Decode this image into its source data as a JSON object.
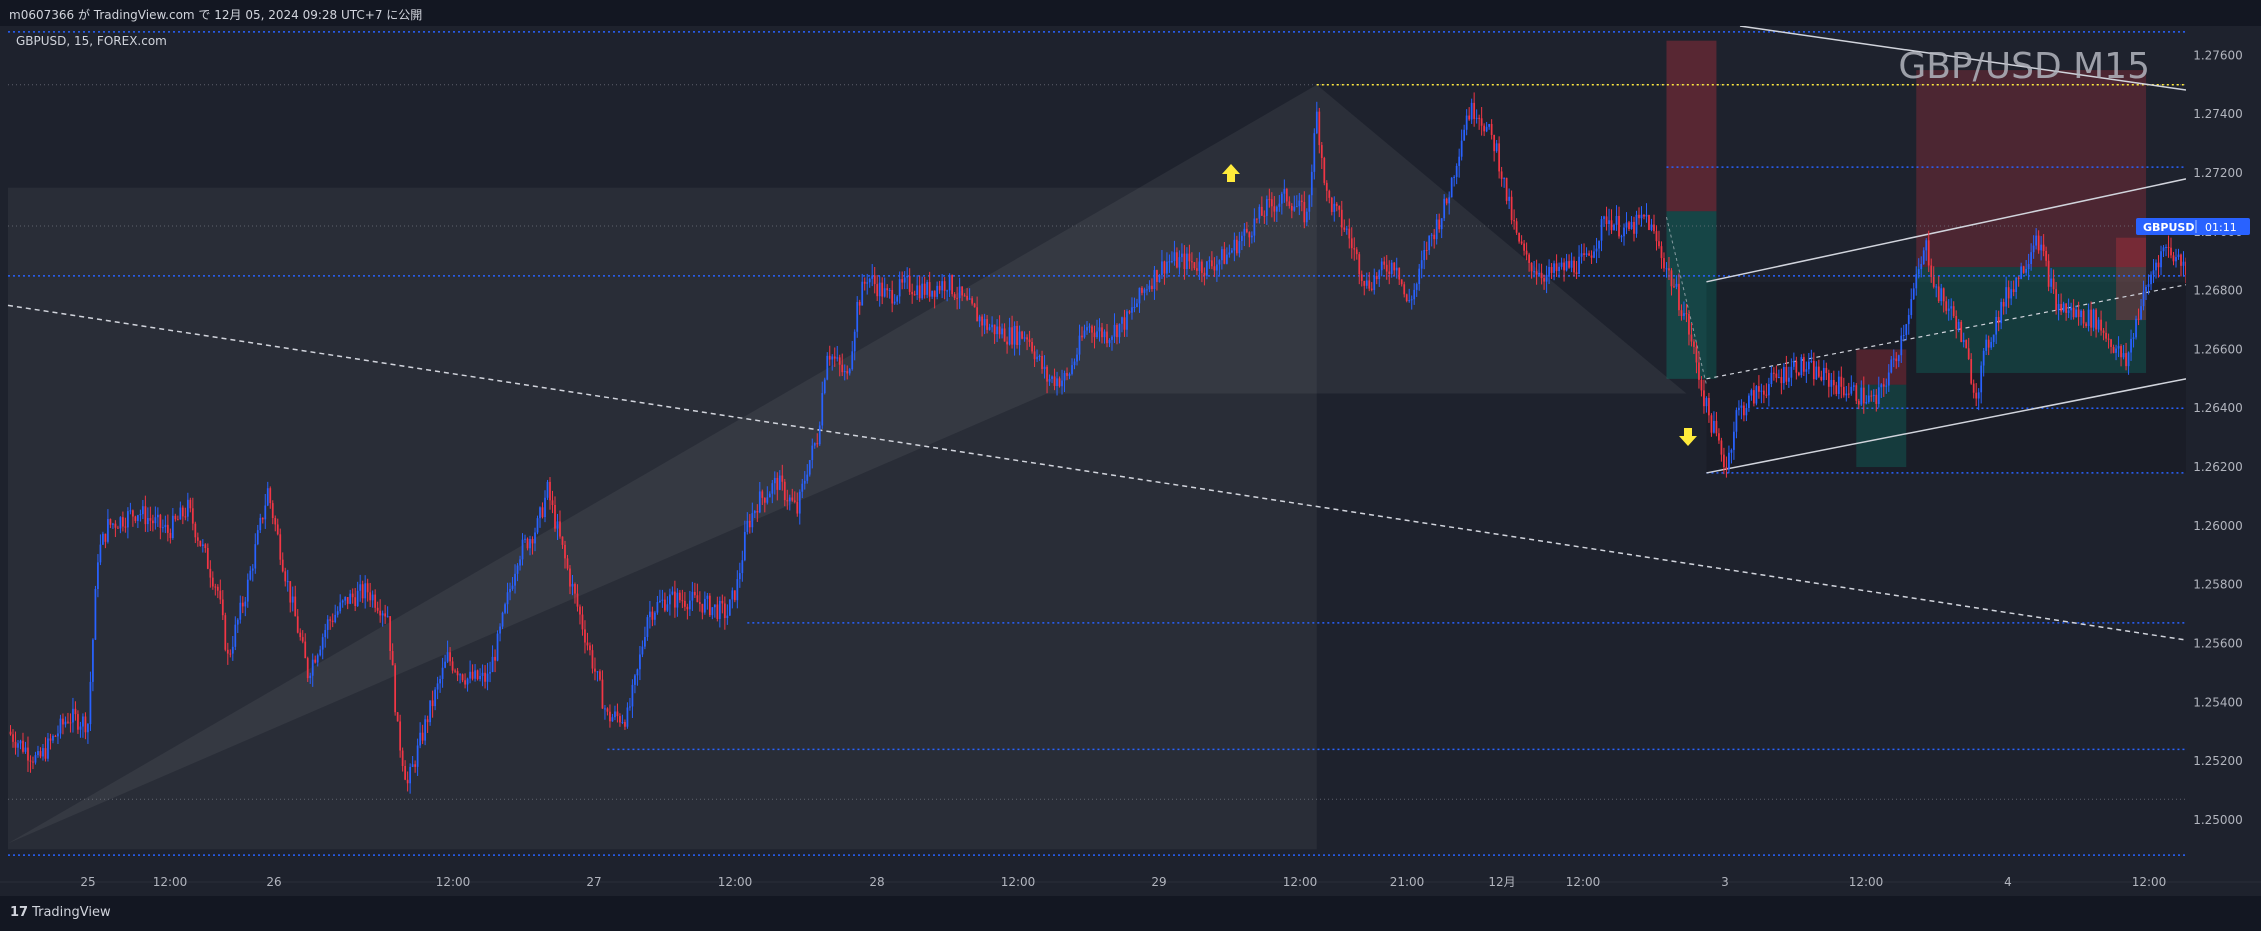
{
  "header": {
    "publish_text": "m0607366 が TradingView.com で 12月 05, 2024 09:28 UTC+7 に公開"
  },
  "symbol_info": "GBPUSD, 15, FOREX.com",
  "watermark": "GBP/USD M15",
  "price_tag": {
    "symbol": "GBPUSD",
    "countdown": "01:11"
  },
  "footer": {
    "brand": "TradingView",
    "brand_mark": "17"
  },
  "colors": {
    "bg": "#1e222d",
    "up": "#2962ff",
    "down": "#f23645",
    "level": "#2962ff",
    "yellow": "#ffeb3b"
  },
  "chart_data": {
    "type": "candlestick",
    "symbol": "GBPUSD",
    "timeframe": "15",
    "ylim": [
      1.2485,
      1.277
    ],
    "y_ticks": [
      "1.27600",
      "1.27400",
      "1.27200",
      "1.27000",
      "1.26800",
      "1.26600",
      "1.26400",
      "1.26200",
      "1.26000",
      "1.25800",
      "1.25600",
      "1.25400",
      "1.25200",
      "1.25000"
    ],
    "x_ticks": [
      "25",
      "12:00",
      "26",
      "12:00",
      "27",
      "12:00",
      "28",
      "12:00",
      "29",
      "12:00",
      "21:00",
      "12月",
      "12:00",
      "3",
      "12:00",
      "4",
      "12:00"
    ],
    "price_path": [
      [
        0,
        1.253
      ],
      [
        3,
        1.252
      ],
      [
        6,
        1.2535
      ],
      [
        8,
        1.2533
      ],
      [
        9,
        1.259
      ],
      [
        10,
        1.26
      ],
      [
        13,
        1.2605
      ],
      [
        16,
        1.2598
      ],
      [
        18,
        1.2606
      ],
      [
        21,
        1.2578
      ],
      [
        22,
        1.2555
      ],
      [
        24,
        1.258
      ],
      [
        26,
        1.2612
      ],
      [
        28,
        1.258
      ],
      [
        30,
        1.255
      ],
      [
        32,
        1.2567
      ],
      [
        34,
        1.2575
      ],
      [
        36,
        1.2578
      ],
      [
        38,
        1.257
      ],
      [
        39,
        1.253
      ],
      [
        40,
        1.2512
      ],
      [
        42,
        1.2535
      ],
      [
        44,
        1.2555
      ],
      [
        46,
        1.2548
      ],
      [
        48,
        1.2548
      ],
      [
        49,
        1.256
      ],
      [
        51,
        1.259
      ],
      [
        53,
        1.26
      ],
      [
        54,
        1.2612
      ],
      [
        56,
        1.2585
      ],
      [
        58,
        1.256
      ],
      [
        60,
        1.2535
      ],
      [
        62,
        1.2535
      ],
      [
        63,
        1.255
      ],
      [
        64,
        1.257
      ],
      [
        65,
        1.2573
      ],
      [
        66,
        1.2575
      ],
      [
        68,
        1.2575
      ],
      [
        70,
        1.2573
      ],
      [
        72,
        1.257
      ],
      [
        73,
        1.258
      ],
      [
        74,
        1.26
      ],
      [
        75,
        1.2608
      ],
      [
        77,
        1.2615
      ],
      [
        79,
        1.2605
      ],
      [
        80,
        1.262
      ],
      [
        81,
        1.263
      ],
      [
        82,
        1.266
      ],
      [
        84,
        1.265
      ],
      [
        85,
        1.2675
      ],
      [
        86,
        1.2685
      ],
      [
        88,
        1.2678
      ],
      [
        90,
        1.2682
      ],
      [
        92,
        1.268
      ],
      [
        94,
        1.2683
      ],
      [
        96,
        1.2675
      ],
      [
        98,
        1.2668
      ],
      [
        100,
        1.2665
      ],
      [
        102,
        1.2665
      ],
      [
        104,
        1.265
      ],
      [
        106,
        1.265
      ],
      [
        108,
        1.2668
      ],
      [
        110,
        1.2665
      ],
      [
        112,
        1.267
      ],
      [
        114,
        1.2682
      ],
      [
        116,
        1.269
      ],
      [
        118,
        1.269
      ],
      [
        120,
        1.2688
      ],
      [
        122,
        1.2692
      ],
      [
        124,
        1.27
      ],
      [
        126,
        1.2708
      ],
      [
        128,
        1.2712
      ],
      [
        130,
        1.2705
      ],
      [
        131,
        1.274
      ],
      [
        132,
        1.2712
      ],
      [
        134,
        1.27
      ],
      [
        136,
        1.2682
      ],
      [
        138,
        1.2688
      ],
      [
        139,
        1.269
      ],
      [
        140,
        1.2675
      ],
      [
        141,
        1.2682
      ],
      [
        142,
        1.2695
      ],
      [
        144,
        1.271
      ],
      [
        145,
        1.2725
      ],
      [
        146,
        1.274
      ],
      [
        147,
        1.2742
      ],
      [
        148,
        1.2735
      ],
      [
        149,
        1.2728
      ],
      [
        150,
        1.2712
      ],
      [
        151,
        1.2698
      ],
      [
        152,
        1.269
      ],
      [
        154,
        1.2685
      ],
      [
        156,
        1.2688
      ],
      [
        158,
        1.269
      ],
      [
        160,
        1.2705
      ],
      [
        162,
        1.27
      ],
      [
        164,
        1.2705
      ],
      [
        166,
        1.2688
      ],
      [
        168,
        1.267
      ],
      [
        169,
        1.2655
      ],
      [
        170,
        1.264
      ],
      [
        171,
        1.263
      ],
      [
        172,
        1.262
      ],
      [
        173,
        1.2638
      ],
      [
        175,
        1.2645
      ],
      [
        177,
        1.265
      ],
      [
        179,
        1.2655
      ],
      [
        181,
        1.2652
      ],
      [
        183,
        1.2648
      ],
      [
        185,
        1.2645
      ],
      [
        187,
        1.2642
      ],
      [
        189,
        1.2658
      ],
      [
        191,
        1.2683
      ],
      [
        192,
        1.2695
      ],
      [
        193,
        1.268
      ],
      [
        195,
        1.267
      ],
      [
        196,
        1.2658
      ],
      [
        197,
        1.2645
      ],
      [
        198,
        1.266
      ],
      [
        199,
        1.267
      ],
      [
        200,
        1.2678
      ],
      [
        202,
        1.269
      ],
      [
        203,
        1.27
      ],
      [
        204,
        1.2688
      ],
      [
        205,
        1.2675
      ],
      [
        207,
        1.2672
      ],
      [
        209,
        1.267
      ],
      [
        211,
        1.266
      ],
      [
        212,
        1.2655
      ],
      [
        213,
        1.267
      ],
      [
        215,
        1.269
      ],
      [
        216,
        1.2695
      ],
      [
        218,
        1.2688
      ]
    ],
    "channel": {
      "upper": [
        [
          170,
          1.2683
        ],
        [
          218,
          1.2718
        ]
      ],
      "lower": [
        [
          170,
          1.2618
        ],
        [
          218,
          1.265
        ]
      ]
    },
    "dashed_trendline": [
      [
        0,
        1.2675
      ],
      [
        218,
        1.2562
      ]
    ],
    "dashed_mid": [
      [
        170,
        1.265
      ],
      [
        218,
        1.2682
      ]
    ],
    "levels_blue_dotted": [
      1.2685,
      1.2768,
      1.2722,
      1.264,
      1.2618,
      1.2567,
      1.2524
    ],
    "level_yellow": 1.275,
    "level_faint": [
      1.275,
      1.2702,
      1.2507
    ]
  }
}
